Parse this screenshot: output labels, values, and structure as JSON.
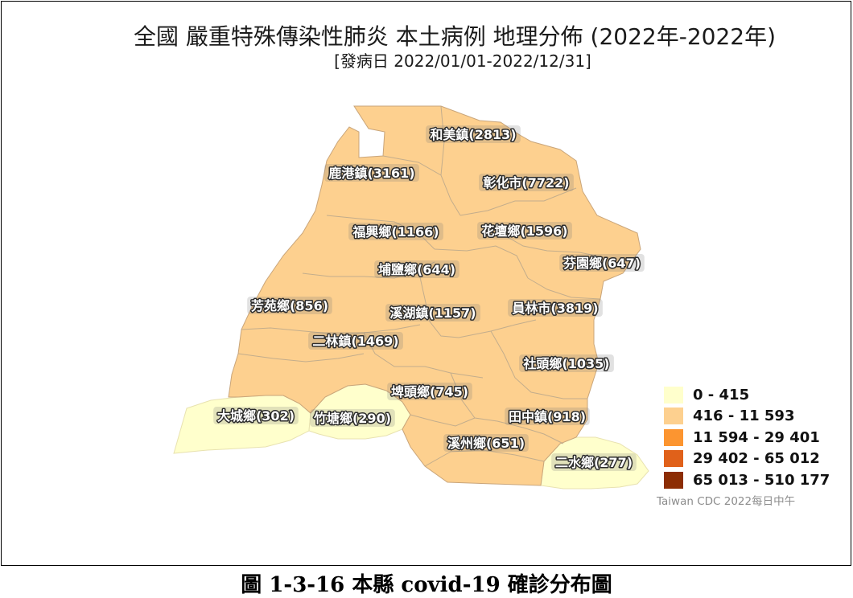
{
  "title": "全國 嚴重特殊傳染性肺炎 本土病例 地理分佈 (2022年-2022年)",
  "subtitle": "[發病日 2022/01/01-2022/12/31]",
  "regions": [
    {
      "label": "和美鎮(2813)",
      "cases": 2813
    },
    {
      "label": "鹿港鎮(3161)",
      "cases": 3161
    },
    {
      "label": "彰化市(7722)",
      "cases": 7722
    },
    {
      "label": "福興鄉(1166)",
      "cases": 1166
    },
    {
      "label": "花壇鄉(1596)",
      "cases": 1596
    },
    {
      "label": "芬園鄉(647)",
      "cases": 647
    },
    {
      "label": "埔鹽鄉(644)",
      "cases": 644
    },
    {
      "label": "芳苑鄉(856)",
      "cases": 856
    },
    {
      "label": "溪湖鎮(1157)",
      "cases": 1157
    },
    {
      "label": "員林市(3819)",
      "cases": 3819
    },
    {
      "label": "二林鎮(1469)",
      "cases": 1469
    },
    {
      "label": "社頭鄉(1035)",
      "cases": 1035
    },
    {
      "label": "埤頭鄉(745)",
      "cases": 745
    },
    {
      "label": "大城鄉(302)",
      "cases": 302
    },
    {
      "label": "竹塘鄉(290)",
      "cases": 290
    },
    {
      "label": "田中鎮(918)",
      "cases": 918
    },
    {
      "label": "溪州鄉(651)",
      "cases": 651
    },
    {
      "label": "二水鄉(277)",
      "cases": 277
    }
  ],
  "legend": [
    {
      "label": "0 - 415",
      "color": "#ffffcc"
    },
    {
      "label": "416 - 11 593",
      "color": "#fdd08f"
    },
    {
      "label": "11 594 - 29 401",
      "color": "#fc9530"
    },
    {
      "label": "29 402 - 65 012",
      "color": "#e0611a"
    },
    {
      "label": "65 013 - 510 177",
      "color": "#8c2d04"
    }
  ],
  "credit": "Taiwan CDC 2022每日中午",
  "caption": "圖 1-3-16 本縣 covid-19 確診分布圖"
}
